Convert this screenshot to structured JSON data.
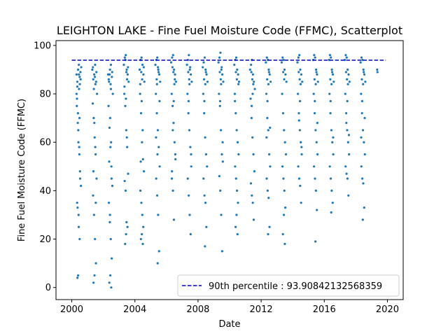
{
  "chart_data": {
    "type": "scatter",
    "title": "LEIGHTON LAKE - Fine Fuel Moisture Code (FFMC), Scatterplot",
    "xlabel": "Date",
    "ylabel": "Fine Fuel Moisture Code (FFMC)",
    "xlim": [
      1999.0,
      2021.0
    ],
    "ylim": [
      -5.0,
      102.0
    ],
    "xticks": [
      2000,
      2004,
      2008,
      2012,
      2016,
      2020
    ],
    "xtick_labels": [
      "2000",
      "2004",
      "2008",
      "2012",
      "2016",
      "2020"
    ],
    "yticks": [
      0,
      20,
      40,
      60,
      80,
      100
    ],
    "ytick_labels": [
      "0",
      "20",
      "40",
      "60",
      "80",
      "100"
    ],
    "grid": false,
    "legend_position": "lower-right",
    "colors": {
      "points": "#1f77b4",
      "percentile_line": "#0000cc"
    },
    "reference_line": {
      "label": "90th percentile : 93.90842132568359",
      "y": 93.90842132568359,
      "x_range": [
        2000.0,
        2019.9
      ],
      "style": "dashed"
    },
    "series": [
      {
        "values_description_x": "date as decimal year",
        "x": [
          2000.3,
          2000.35,
          2000.4,
          2000.45,
          2000.5,
          2000.55,
          2000.6,
          2000.32,
          2000.38,
          2000.42,
          2000.48,
          2000.52,
          2000.58,
          2000.34,
          2000.44,
          2000.5,
          2000.4,
          2000.36,
          2000.46,
          2000.56,
          2000.3,
          2000.33,
          2000.41,
          2000.47,
          2000.53,
          2000.37,
          2000.43,
          2000.49,
          2000.39,
          2000.51,
          2000.45,
          2000.35,
          2001.3,
          2001.36,
          2001.42,
          2001.48,
          2001.54,
          2001.6,
          2001.33,
          2001.39,
          2001.45,
          2001.51,
          2001.57,
          2001.35,
          2001.41,
          2001.47,
          2001.53,
          2001.44,
          2001.38,
          2001.5,
          2001.46,
          2001.4,
          2001.56,
          2001.34,
          2001.43,
          2001.49,
          2001.37,
          2001.52,
          2002.3,
          2002.36,
          2002.42,
          2002.48,
          2002.54,
          2002.6,
          2002.33,
          2002.39,
          2002.45,
          2002.51,
          2002.57,
          2002.35,
          2002.41,
          2002.47,
          2002.53,
          2002.44,
          2002.38,
          2002.5,
          2002.46,
          2002.4,
          2002.56,
          2002.34,
          2002.43,
          2002.49,
          2002.37,
          2002.52,
          2002.42,
          2002.48,
          2003.3,
          2003.36,
          2003.42,
          2003.48,
          2003.54,
          2003.6,
          2003.33,
          2003.39,
          2003.45,
          2003.51,
          2003.57,
          2003.35,
          2003.41,
          2003.47,
          2003.53,
          2003.44,
          2003.38,
          2003.5,
          2003.46,
          2003.4,
          2003.56,
          2003.34,
          2003.43,
          2003.49,
          2004.3,
          2004.36,
          2004.42,
          2004.48,
          2004.54,
          2004.6,
          2004.33,
          2004.39,
          2004.45,
          2004.51,
          2004.57,
          2004.35,
          2004.41,
          2004.47,
          2004.53,
          2004.44,
          2004.38,
          2004.5,
          2004.46,
          2004.4,
          2004.56,
          2004.34,
          2004.43,
          2004.49,
          2004.37,
          2005.3,
          2005.36,
          2005.42,
          2005.48,
          2005.54,
          2005.6,
          2005.33,
          2005.39,
          2005.45,
          2005.51,
          2005.57,
          2005.35,
          2005.41,
          2005.47,
          2005.53,
          2005.44,
          2005.38,
          2005.5,
          2005.46,
          2005.4,
          2005.56,
          2005.34,
          2005.43,
          2006.3,
          2006.36,
          2006.42,
          2006.48,
          2006.54,
          2006.6,
          2006.33,
          2006.39,
          2006.45,
          2006.51,
          2006.57,
          2006.35,
          2006.41,
          2006.47,
          2006.53,
          2006.44,
          2006.38,
          2006.5,
          2006.46,
          2006.4,
          2006.56,
          2006.34,
          2007.3,
          2007.36,
          2007.42,
          2007.48,
          2007.54,
          2007.6,
          2007.33,
          2007.39,
          2007.45,
          2007.51,
          2007.57,
          2007.35,
          2007.41,
          2007.47,
          2007.53,
          2007.44,
          2007.38,
          2007.5,
          2007.46,
          2007.4,
          2007.56,
          2008.3,
          2008.36,
          2008.42,
          2008.48,
          2008.54,
          2008.6,
          2008.33,
          2008.39,
          2008.45,
          2008.51,
          2008.57,
          2008.35,
          2008.41,
          2008.47,
          2008.53,
          2008.44,
          2008.38,
          2008.5,
          2008.46,
          2008.4,
          2009.3,
          2009.36,
          2009.42,
          2009.48,
          2009.54,
          2009.6,
          2009.33,
          2009.39,
          2009.45,
          2009.51,
          2009.57,
          2009.35,
          2009.41,
          2009.47,
          2009.53,
          2009.44,
          2009.38,
          2009.5,
          2009.46,
          2009.4,
          2009.56,
          2010.3,
          2010.36,
          2010.42,
          2010.48,
          2010.54,
          2010.6,
          2010.33,
          2010.39,
          2010.45,
          2010.51,
          2010.57,
          2010.35,
          2010.41,
          2010.47,
          2010.53,
          2010.44,
          2010.38,
          2010.5,
          2010.46,
          2010.4,
          2010.56,
          2010.34,
          2011.3,
          2011.36,
          2011.42,
          2011.48,
          2011.54,
          2011.6,
          2011.33,
          2011.39,
          2011.45,
          2011.51,
          2011.57,
          2011.35,
          2011.41,
          2011.47,
          2011.53,
          2011.44,
          2011.38,
          2011.5,
          2011.46,
          2011.4,
          2012.3,
          2012.36,
          2012.42,
          2012.48,
          2012.54,
          2012.6,
          2012.33,
          2012.39,
          2012.45,
          2012.51,
          2012.57,
          2012.35,
          2012.41,
          2012.47,
          2012.53,
          2012.44,
          2012.38,
          2012.5,
          2012.46,
          2012.4,
          2012.56,
          2012.34,
          2013.3,
          2013.36,
          2013.42,
          2013.48,
          2013.54,
          2013.6,
          2013.33,
          2013.39,
          2013.45,
          2013.51,
          2013.57,
          2013.35,
          2013.41,
          2013.47,
          2013.53,
          2013.44,
          2013.38,
          2013.5,
          2013.46,
          2013.4,
          2014.3,
          2014.36,
          2014.42,
          2014.48,
          2014.54,
          2014.6,
          2014.33,
          2014.39,
          2014.45,
          2014.51,
          2014.57,
          2014.35,
          2014.41,
          2014.47,
          2014.53,
          2014.44,
          2014.38,
          2014.5,
          2014.46,
          2014.4,
          2014.56,
          2015.3,
          2015.36,
          2015.42,
          2015.48,
          2015.54,
          2015.6,
          2015.33,
          2015.39,
          2015.45,
          2015.51,
          2015.57,
          2015.35,
          2015.41,
          2015.47,
          2015.53,
          2015.44,
          2015.38,
          2015.5,
          2015.46,
          2015.4,
          2015.56,
          2016.3,
          2016.36,
          2016.42,
          2016.48,
          2016.54,
          2016.6,
          2016.33,
          2016.39,
          2016.45,
          2016.51,
          2016.57,
          2016.35,
          2016.41,
          2016.47,
          2016.53,
          2016.44,
          2016.38,
          2016.5,
          2016.46,
          2016.4,
          2016.56,
          2017.3,
          2017.36,
          2017.42,
          2017.48,
          2017.54,
          2017.6,
          2017.33,
          2017.39,
          2017.45,
          2017.51,
          2017.57,
          2017.35,
          2017.41,
          2017.47,
          2017.53,
          2017.44,
          2017.38,
          2017.5,
          2017.46,
          2017.4,
          2017.56,
          2018.3,
          2018.36,
          2018.42,
          2018.48,
          2018.54,
          2018.6,
          2018.33,
          2018.39,
          2018.45,
          2018.51,
          2018.57,
          2018.35,
          2018.41,
          2018.47,
          2018.53,
          2018.44,
          2018.38,
          2018.5,
          2018.46,
          2018.4,
          2018.56,
          2018.34,
          2019.35,
          2019.37
        ],
        "y": [
          88,
          85,
          90,
          92,
          87,
          89,
          91,
          75,
          68,
          60,
          55,
          48,
          42,
          35,
          25,
          20,
          5,
          4,
          82,
          86,
          80,
          78,
          65,
          58,
          45,
          33,
          30,
          70,
          72,
          84,
          88,
          83,
          90,
          86,
          88,
          92,
          85,
          80,
          76,
          70,
          62,
          55,
          45,
          38,
          30,
          20,
          10,
          5,
          2,
          84,
          87,
          82,
          89,
          91,
          68,
          58,
          48,
          35,
          88,
          85,
          90,
          92,
          87,
          80,
          75,
          66,
          58,
          50,
          42,
          35,
          27,
          20,
          12,
          5,
          2,
          0,
          84,
          88,
          89,
          86,
          70,
          60,
          52,
          45,
          30,
          82,
          92,
          95,
          96,
          90,
          88,
          85,
          80,
          75,
          65,
          58,
          47,
          44,
          40,
          27,
          25,
          22,
          18,
          86,
          89,
          94,
          91,
          83,
          78,
          62,
          90,
          94,
          95,
          92,
          88,
          85,
          80,
          72,
          60,
          53,
          48,
          40,
          35,
          30,
          25,
          22,
          20,
          18,
          86,
          89,
          91,
          84,
          77,
          65,
          52,
          92,
          94,
          95,
          90,
          88,
          85,
          80,
          72,
          65,
          58,
          50,
          45,
          38,
          30,
          15,
          10,
          86,
          89,
          91,
          84,
          77,
          62,
          55,
          93,
          95,
          96,
          90,
          88,
          85,
          80,
          75,
          68,
          60,
          53,
          48,
          40,
          28,
          86,
          89,
          91,
          84,
          77,
          65,
          55,
          45,
          92,
          94,
          96,
          90,
          88,
          85,
          80,
          72,
          65,
          58,
          50,
          45,
          38,
          30,
          22,
          86,
          89,
          91,
          84,
          77,
          55,
          91,
          93,
          95,
          90,
          88,
          85,
          80,
          72,
          62,
          55,
          50,
          45,
          38,
          35,
          25,
          17,
          86,
          89,
          84,
          77,
          93,
          95,
          97,
          90,
          88,
          85,
          80,
          75,
          65,
          55,
          52,
          46,
          40,
          30,
          15,
          86,
          89,
          91,
          84,
          77,
          60,
          92,
          94,
          95,
          90,
          88,
          85,
          80,
          72,
          65,
          60,
          55,
          50,
          45,
          40,
          35,
          30,
          25,
          22,
          86,
          89,
          84,
          77,
          90,
          92,
          94,
          88,
          85,
          82,
          78,
          70,
          62,
          55,
          48,
          43,
          38,
          35,
          28,
          86,
          89,
          84,
          80,
          75,
          93,
          95,
          94,
          90,
          88,
          85,
          80,
          70,
          65,
          55,
          50,
          45,
          40,
          37,
          25,
          22,
          86,
          89,
          84,
          77,
          66,
          62,
          93,
          95,
          94,
          90,
          88,
          85,
          80,
          72,
          65,
          60,
          55,
          50,
          45,
          40,
          33,
          30,
          22,
          18,
          86,
          89,
          93,
          95,
          96,
          90,
          88,
          85,
          80,
          72,
          65,
          60,
          55,
          50,
          45,
          42,
          35,
          86,
          89,
          84,
          77,
          69,
          58,
          94,
          96,
          95,
          90,
          88,
          85,
          80,
          72,
          65,
          60,
          55,
          50,
          45,
          40,
          32,
          19,
          86,
          89,
          84,
          77,
          68,
          94,
          96,
          95,
          90,
          88,
          85,
          80,
          72,
          65,
          60,
          55,
          50,
          45,
          40,
          35,
          31,
          86,
          89,
          84,
          77,
          62,
          94,
          96,
          95,
          90,
          88,
          85,
          80,
          72,
          65,
          60,
          55,
          50,
          47,
          45,
          38,
          86,
          89,
          84,
          77,
          68,
          63,
          93,
          95,
          94,
          90,
          88,
          85,
          80,
          72,
          65,
          60,
          55,
          50,
          45,
          43,
          33,
          28,
          86,
          89,
          84,
          77,
          70,
          62,
          90,
          89
        ]
      }
    ]
  }
}
